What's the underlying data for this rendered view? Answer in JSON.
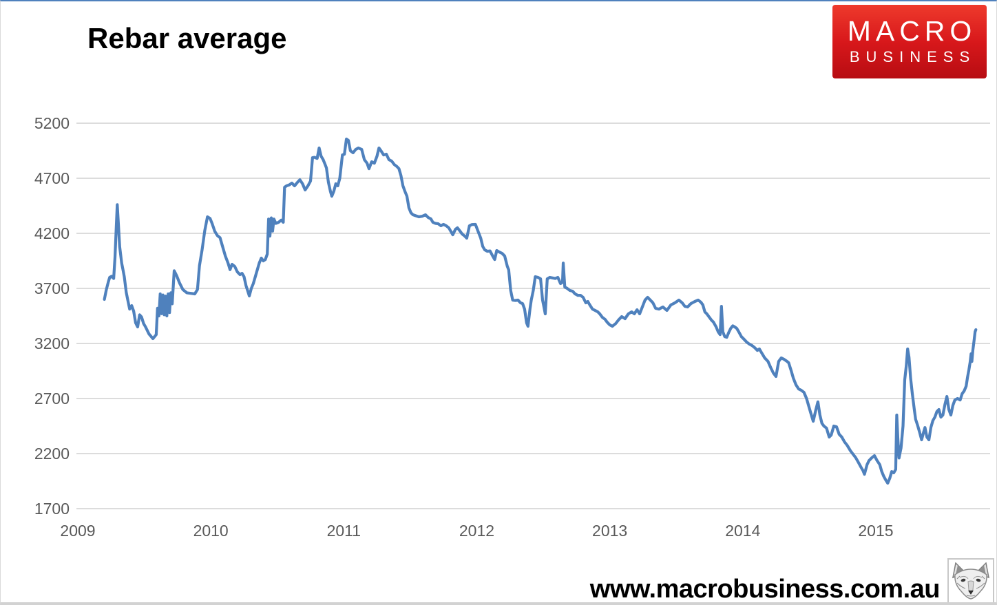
{
  "page": {
    "title": "Rebar average",
    "site_url": "www.macrobusiness.com.au"
  },
  "logo": {
    "line1": "MACRO",
    "line2": "BUSINESS",
    "bg_top": "#ee3a2c",
    "bg_bottom": "#b70c12",
    "text_color": "#ffffff"
  },
  "chart_data": {
    "type": "line",
    "title": "Rebar average",
    "series_name": "Rebar average",
    "line_color": "#4f81bd",
    "grid_color": "#dcdcdc",
    "label_color": "#595959",
    "grid": "horizontal-only",
    "legend_position": "none",
    "xlabel": "",
    "ylabel": "",
    "x_ticks": [
      2009,
      2010,
      2011,
      2012,
      2013,
      2014,
      2015
    ],
    "y_ticks": [
      1700,
      2200,
      2700,
      3200,
      3700,
      4200,
      4700,
      5200
    ],
    "ylim": [
      1700,
      5200
    ],
    "xlim": [
      2009,
      2015.87
    ],
    "points": [
      [
        2009.21,
        3600
      ],
      [
        2009.225,
        3690
      ],
      [
        2009.24,
        3760
      ],
      [
        2009.25,
        3800
      ],
      [
        2009.265,
        3810
      ],
      [
        2009.28,
        3790
      ],
      [
        2009.29,
        3980
      ],
      [
        2009.3,
        4260
      ],
      [
        2009.307,
        4460
      ],
      [
        2009.315,
        4300
      ],
      [
        2009.325,
        4080
      ],
      [
        2009.34,
        3930
      ],
      [
        2009.35,
        3870
      ],
      [
        2009.36,
        3806
      ],
      [
        2009.375,
        3662
      ],
      [
        2009.385,
        3600
      ],
      [
        2009.4,
        3512
      ],
      [
        2009.415,
        3544
      ],
      [
        2009.43,
        3494
      ],
      [
        2009.445,
        3387
      ],
      [
        2009.46,
        3350
      ],
      [
        2009.475,
        3460
      ],
      [
        2009.49,
        3440
      ],
      [
        2009.505,
        3381
      ],
      [
        2009.52,
        3350
      ],
      [
        2009.545,
        3287
      ],
      [
        2009.575,
        3244
      ],
      [
        2009.6,
        3280
      ],
      [
        2009.61,
        3520
      ],
      [
        2009.62,
        3450
      ],
      [
        2009.63,
        3650
      ],
      [
        2009.64,
        3470
      ],
      [
        2009.65,
        3640
      ],
      [
        2009.66,
        3460
      ],
      [
        2009.67,
        3630
      ],
      [
        2009.68,
        3450
      ],
      [
        2009.69,
        3650
      ],
      [
        2009.7,
        3480
      ],
      [
        2009.71,
        3660
      ],
      [
        2009.72,
        3560
      ],
      [
        2009.735,
        3860
      ],
      [
        2009.755,
        3812
      ],
      [
        2009.775,
        3750
      ],
      [
        2009.8,
        3690
      ],
      [
        2009.83,
        3660
      ],
      [
        2009.86,
        3655
      ],
      [
        2009.89,
        3650
      ],
      [
        2009.91,
        3690
      ],
      [
        2009.925,
        3906
      ],
      [
        2009.945,
        4050
      ],
      [
        2009.965,
        4225
      ],
      [
        2009.985,
        4350
      ],
      [
        2010.005,
        4335
      ],
      [
        2010.02,
        4290
      ],
      [
        2010.04,
        4219
      ],
      [
        2010.06,
        4180
      ],
      [
        2010.08,
        4160
      ],
      [
        2010.1,
        4075
      ],
      [
        2010.12,
        3994
      ],
      [
        2010.14,
        3930
      ],
      [
        2010.155,
        3870
      ],
      [
        2010.17,
        3919
      ],
      [
        2010.19,
        3900
      ],
      [
        2010.21,
        3850
      ],
      [
        2010.23,
        3825
      ],
      [
        2010.245,
        3837
      ],
      [
        2010.26,
        3806
      ],
      [
        2010.275,
        3725
      ],
      [
        2010.29,
        3669
      ],
      [
        2010.3,
        3631
      ],
      [
        2010.315,
        3700
      ],
      [
        2010.33,
        3744
      ],
      [
        2010.345,
        3806
      ],
      [
        2010.36,
        3869
      ],
      [
        2010.375,
        3931
      ],
      [
        2010.39,
        3975
      ],
      [
        2010.405,
        3950
      ],
      [
        2010.42,
        3962
      ],
      [
        2010.435,
        4012
      ],
      [
        2010.445,
        4330
      ],
      [
        2010.455,
        4175
      ],
      [
        2010.465,
        4340
      ],
      [
        2010.475,
        4220
      ],
      [
        2010.485,
        4330
      ],
      [
        2010.5,
        4290
      ],
      [
        2010.52,
        4300
      ],
      [
        2010.54,
        4320
      ],
      [
        2010.555,
        4300
      ],
      [
        2010.565,
        4619
      ],
      [
        2010.58,
        4631
      ],
      [
        2010.6,
        4640
      ],
      [
        2010.62,
        4656
      ],
      [
        2010.64,
        4631
      ],
      [
        2010.66,
        4660
      ],
      [
        2010.68,
        4687
      ],
      [
        2010.7,
        4650
      ],
      [
        2010.72,
        4594
      ],
      [
        2010.74,
        4630
      ],
      [
        2010.76,
        4675
      ],
      [
        2010.775,
        4887
      ],
      [
        2010.79,
        4890
      ],
      [
        2010.81,
        4880
      ],
      [
        2010.825,
        4975
      ],
      [
        2010.84,
        4900
      ],
      [
        2010.855,
        4870
      ],
      [
        2010.87,
        4825
      ],
      [
        2010.88,
        4794
      ],
      [
        2010.895,
        4662
      ],
      [
        2010.91,
        4581
      ],
      [
        2010.92,
        4537
      ],
      [
        2010.935,
        4581
      ],
      [
        2010.95,
        4650
      ],
      [
        2010.965,
        4631
      ],
      [
        2010.98,
        4700
      ],
      [
        2011.0,
        4912
      ],
      [
        2011.015,
        4919
      ],
      [
        2011.03,
        5056
      ],
      [
        2011.045,
        5044
      ],
      [
        2011.06,
        4950
      ],
      [
        2011.08,
        4931
      ],
      [
        2011.1,
        4962
      ],
      [
        2011.12,
        4975
      ],
      [
        2011.145,
        4962
      ],
      [
        2011.165,
        4869
      ],
      [
        2011.185,
        4837
      ],
      [
        2011.2,
        4787
      ],
      [
        2011.22,
        4850
      ],
      [
        2011.24,
        4837
      ],
      [
        2011.26,
        4900
      ],
      [
        2011.275,
        4975
      ],
      [
        2011.29,
        4950
      ],
      [
        2011.31,
        4912
      ],
      [
        2011.33,
        4919
      ],
      [
        2011.35,
        4869
      ],
      [
        2011.37,
        4856
      ],
      [
        2011.39,
        4825
      ],
      [
        2011.41,
        4806
      ],
      [
        2011.425,
        4787
      ],
      [
        2011.44,
        4725
      ],
      [
        2011.455,
        4631
      ],
      [
        2011.47,
        4581
      ],
      [
        2011.485,
        4537
      ],
      [
        2011.5,
        4431
      ],
      [
        2011.515,
        4387
      ],
      [
        2011.53,
        4369
      ],
      [
        2011.55,
        4360
      ],
      [
        2011.575,
        4350
      ],
      [
        2011.6,
        4355
      ],
      [
        2011.625,
        4368
      ],
      [
        2011.645,
        4344
      ],
      [
        2011.665,
        4331
      ],
      [
        2011.68,
        4300
      ],
      [
        2011.7,
        4290
      ],
      [
        2011.72,
        4287
      ],
      [
        2011.74,
        4269
      ],
      [
        2011.76,
        4281
      ],
      [
        2011.78,
        4269
      ],
      [
        2011.8,
        4250
      ],
      [
        2011.815,
        4219
      ],
      [
        2011.83,
        4187
      ],
      [
        2011.85,
        4237
      ],
      [
        2011.865,
        4250
      ],
      [
        2011.885,
        4219
      ],
      [
        2011.9,
        4194
      ],
      [
        2011.92,
        4175
      ],
      [
        2011.935,
        4156
      ],
      [
        2011.955,
        4269
      ],
      [
        2011.975,
        4280
      ],
      [
        2012.0,
        4281
      ],
      [
        2012.02,
        4219
      ],
      [
        2012.04,
        4156
      ],
      [
        2012.055,
        4081
      ],
      [
        2012.07,
        4050
      ],
      [
        2012.09,
        4037
      ],
      [
        2012.11,
        4040
      ],
      [
        2012.13,
        3994
      ],
      [
        2012.145,
        3962
      ],
      [
        2012.16,
        4044
      ],
      [
        2012.18,
        4030
      ],
      [
        2012.2,
        4019
      ],
      [
        2012.22,
        3994
      ],
      [
        2012.24,
        3900
      ],
      [
        2012.25,
        3869
      ],
      [
        2012.265,
        3681
      ],
      [
        2012.28,
        3594
      ],
      [
        2012.3,
        3590
      ],
      [
        2012.32,
        3594
      ],
      [
        2012.34,
        3569
      ],
      [
        2012.355,
        3562
      ],
      [
        2012.37,
        3512
      ],
      [
        2012.385,
        3387
      ],
      [
        2012.395,
        3356
      ],
      [
        2012.41,
        3512
      ],
      [
        2012.42,
        3594
      ],
      [
        2012.435,
        3681
      ],
      [
        2012.45,
        3806
      ],
      [
        2012.47,
        3800
      ],
      [
        2012.49,
        3787
      ],
      [
        2012.505,
        3594
      ],
      [
        2012.515,
        3531
      ],
      [
        2012.525,
        3469
      ],
      [
        2012.54,
        3787
      ],
      [
        2012.56,
        3800
      ],
      [
        2012.58,
        3795
      ],
      [
        2012.6,
        3790
      ],
      [
        2012.62,
        3800
      ],
      [
        2012.64,
        3744
      ],
      [
        2012.655,
        3756
      ],
      [
        2012.66,
        3930
      ],
      [
        2012.672,
        3712
      ],
      [
        2012.69,
        3700
      ],
      [
        2012.71,
        3681
      ],
      [
        2012.73,
        3675
      ],
      [
        2012.75,
        3650
      ],
      [
        2012.77,
        3637
      ],
      [
        2012.79,
        3637
      ],
      [
        2012.81,
        3619
      ],
      [
        2012.83,
        3569
      ],
      [
        2012.845,
        3581
      ],
      [
        2012.86,
        3550
      ],
      [
        2012.88,
        3512
      ],
      [
        2012.9,
        3500
      ],
      [
        2012.92,
        3487
      ],
      [
        2012.935,
        3469
      ],
      [
        2012.955,
        3437
      ],
      [
        2012.975,
        3419
      ],
      [
        2012.99,
        3394
      ],
      [
        2013.01,
        3369
      ],
      [
        2013.03,
        3356
      ],
      [
        2013.055,
        3381
      ],
      [
        2013.075,
        3412
      ],
      [
        2013.1,
        3444
      ],
      [
        2013.125,
        3425
      ],
      [
        2013.15,
        3469
      ],
      [
        2013.175,
        3487
      ],
      [
        2013.195,
        3469
      ],
      [
        2013.215,
        3506
      ],
      [
        2013.235,
        3469
      ],
      [
        2013.255,
        3531
      ],
      [
        2013.275,
        3594
      ],
      [
        2013.295,
        3619
      ],
      [
        2013.315,
        3594
      ],
      [
        2013.335,
        3569
      ],
      [
        2013.355,
        3519
      ],
      [
        2013.38,
        3512
      ],
      [
        2013.41,
        3531
      ],
      [
        2013.44,
        3500
      ],
      [
        2013.47,
        3550
      ],
      [
        2013.5,
        3569
      ],
      [
        2013.53,
        3594
      ],
      [
        2013.555,
        3569
      ],
      [
        2013.575,
        3537
      ],
      [
        2013.595,
        3531
      ],
      [
        2013.62,
        3562
      ],
      [
        2013.65,
        3581
      ],
      [
        2013.675,
        3594
      ],
      [
        2013.695,
        3575
      ],
      [
        2013.71,
        3550
      ],
      [
        2013.725,
        3487
      ],
      [
        2013.74,
        3469
      ],
      [
        2013.755,
        3444
      ],
      [
        2013.775,
        3412
      ],
      [
        2013.79,
        3394
      ],
      [
        2013.81,
        3350
      ],
      [
        2013.825,
        3306
      ],
      [
        2013.84,
        3280
      ],
      [
        2013.85,
        3537
      ],
      [
        2013.86,
        3306
      ],
      [
        2013.875,
        3262
      ],
      [
        2013.89,
        3256
      ],
      [
        2013.905,
        3300
      ],
      [
        2013.92,
        3337
      ],
      [
        2013.935,
        3360
      ],
      [
        2013.95,
        3350
      ],
      [
        2013.965,
        3337
      ],
      [
        2013.98,
        3306
      ],
      [
        2014.0,
        3262
      ],
      [
        2014.015,
        3244
      ],
      [
        2014.04,
        3212
      ],
      [
        2014.06,
        3194
      ],
      [
        2014.08,
        3181
      ],
      [
        2014.1,
        3162
      ],
      [
        2014.12,
        3137
      ],
      [
        2014.135,
        3150
      ],
      [
        2014.15,
        3119
      ],
      [
        2014.175,
        3069
      ],
      [
        2014.2,
        3037
      ],
      [
        2014.22,
        2981
      ],
      [
        2014.24,
        2931
      ],
      [
        2014.26,
        2900
      ],
      [
        2014.28,
        3037
      ],
      [
        2014.3,
        3069
      ],
      [
        2014.32,
        3056
      ],
      [
        2014.34,
        3040
      ],
      [
        2014.355,
        3025
      ],
      [
        2014.375,
        2950
      ],
      [
        2014.39,
        2887
      ],
      [
        2014.41,
        2825
      ],
      [
        2014.43,
        2787
      ],
      [
        2014.45,
        2775
      ],
      [
        2014.47,
        2756
      ],
      [
        2014.49,
        2700
      ],
      [
        2014.505,
        2637
      ],
      [
        2014.52,
        2575
      ],
      [
        2014.54,
        2494
      ],
      [
        2014.56,
        2600
      ],
      [
        2014.575,
        2670
      ],
      [
        2014.59,
        2550
      ],
      [
        2014.605,
        2475
      ],
      [
        2014.62,
        2450
      ],
      [
        2014.64,
        2431
      ],
      [
        2014.66,
        2350
      ],
      [
        2014.675,
        2369
      ],
      [
        2014.695,
        2450
      ],
      [
        2014.715,
        2444
      ],
      [
        2014.735,
        2375
      ],
      [
        2014.755,
        2350
      ],
      [
        2014.775,
        2306
      ],
      [
        2014.795,
        2275
      ],
      [
        2014.82,
        2225
      ],
      [
        2014.84,
        2194
      ],
      [
        2014.86,
        2162
      ],
      [
        2014.88,
        2119
      ],
      [
        2014.9,
        2075
      ],
      [
        2014.915,
        2044
      ],
      [
        2014.925,
        2012
      ],
      [
        2014.945,
        2100
      ],
      [
        2014.96,
        2137
      ],
      [
        2014.98,
        2162
      ],
      [
        2015.0,
        2181
      ],
      [
        2015.02,
        2137
      ],
      [
        2015.04,
        2100
      ],
      [
        2015.055,
        2037
      ],
      [
        2015.07,
        1994
      ],
      [
        2015.085,
        1960
      ],
      [
        2015.1,
        1931
      ],
      [
        2015.115,
        1975
      ],
      [
        2015.13,
        2037
      ],
      [
        2015.145,
        2025
      ],
      [
        2015.16,
        2056
      ],
      [
        2015.168,
        2550
      ],
      [
        2015.176,
        2350
      ],
      [
        2015.185,
        2160
      ],
      [
        2015.2,
        2250
      ],
      [
        2015.215,
        2450
      ],
      [
        2015.228,
        2870
      ],
      [
        2015.24,
        3000
      ],
      [
        2015.25,
        3150
      ],
      [
        2015.26,
        3075
      ],
      [
        2015.272,
        2887
      ],
      [
        2015.285,
        2744
      ],
      [
        2015.3,
        2600
      ],
      [
        2015.31,
        2512
      ],
      [
        2015.325,
        2456
      ],
      [
        2015.34,
        2394
      ],
      [
        2015.355,
        2325
      ],
      [
        2015.37,
        2394
      ],
      [
        2015.38,
        2437
      ],
      [
        2015.395,
        2350
      ],
      [
        2015.41,
        2325
      ],
      [
        2015.425,
        2437
      ],
      [
        2015.44,
        2500
      ],
      [
        2015.455,
        2531
      ],
      [
        2015.47,
        2581
      ],
      [
        2015.485,
        2600
      ],
      [
        2015.5,
        2531
      ],
      [
        2015.515,
        2550
      ],
      [
        2015.53,
        2644
      ],
      [
        2015.545,
        2719
      ],
      [
        2015.56,
        2600
      ],
      [
        2015.575,
        2550
      ],
      [
        2015.59,
        2637
      ],
      [
        2015.605,
        2687
      ],
      [
        2015.625,
        2700
      ],
      [
        2015.645,
        2687
      ],
      [
        2015.66,
        2744
      ],
      [
        2015.675,
        2769
      ],
      [
        2015.69,
        2812
      ],
      [
        2015.7,
        2894
      ],
      [
        2015.71,
        2956
      ],
      [
        2015.72,
        3031
      ],
      [
        2015.727,
        3106
      ],
      [
        2015.733,
        3037
      ],
      [
        2015.74,
        3137
      ],
      [
        2015.75,
        3231
      ],
      [
        2015.757,
        3306
      ],
      [
        2015.763,
        3325
      ]
    ]
  }
}
